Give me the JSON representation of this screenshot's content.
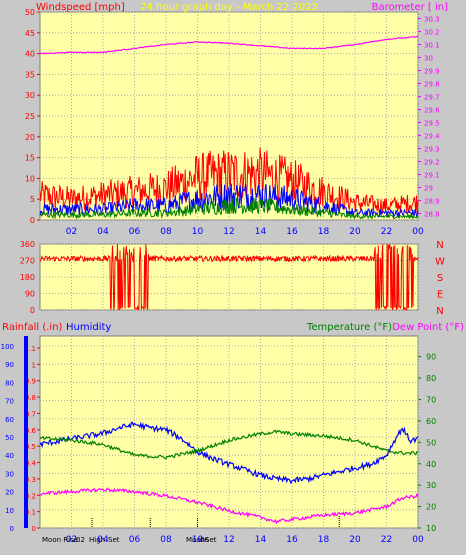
{
  "colors": {
    "background": "#c8c8c8",
    "plot": "#ffffa8",
    "grid": "#a8a8a8",
    "wind": "#ff0000",
    "gust": "#ff0000",
    "speed_blue": "#0000ff",
    "speed_green": "#008000",
    "barometer": "#ff00ff",
    "title": "#ffff00",
    "rain": "#ff0000",
    "humidity": "#0000ff",
    "temperature": "#008000",
    "dewpoint": "#ff00ff",
    "direction": "#ff0000",
    "text_red": "#ff0000",
    "text_blue": "#0000ff",
    "text_black": "#000000"
  },
  "chart_data": [
    {
      "type": "line",
      "title": "24 hour graph day - March 22 2022",
      "ylabel_left": "Windspeed [mph]",
      "ylabel_right": "Barometer [ in]",
      "x_ticks": [
        "02",
        "04",
        "06",
        "08",
        "10",
        "12",
        "14",
        "16",
        "18",
        "20",
        "22",
        "00"
      ],
      "left_ticks": [
        "0",
        "5",
        "10",
        "15",
        "20",
        "25",
        "30",
        "35",
        "40",
        "45",
        "50"
      ],
      "right_ticks": [
        "28.8",
        "28.9",
        "29",
        "29.1",
        "29.2",
        "29.3",
        "29.4",
        "29.5",
        "29.6",
        "29.7",
        "29.8",
        "29.9",
        "30",
        "30.1",
        "30.2",
        "30.3"
      ],
      "xlim": [
        0,
        24
      ],
      "ylim_left": [
        0,
        50
      ],
      "ylim_right": [
        28.75,
        30.35
      ],
      "series": [
        {
          "hours": [
            0,
            2,
            4,
            6,
            8,
            10,
            12,
            14,
            16,
            18,
            20,
            22,
            24
          ],
          "values": [
            7,
            6,
            7,
            8,
            9,
            12,
            13,
            13,
            11,
            8,
            5,
            4,
            5
          ],
          "axis": "left"
        },
        {
          "hours": [
            0,
            2,
            4,
            6,
            8,
            10,
            12,
            14,
            16,
            18,
            20,
            22,
            24
          ],
          "values": [
            3,
            3,
            3,
            4,
            4,
            6,
            7,
            7,
            6,
            4,
            2,
            2,
            2
          ],
          "axis": "left"
        },
        {
          "hours": [
            0,
            2,
            4,
            6,
            8,
            10,
            12,
            14,
            16,
            18,
            20,
            22,
            24
          ],
          "values": [
            1.5,
            1.5,
            1.5,
            2,
            2,
            3,
            4,
            4,
            3,
            2,
            1,
            1,
            1
          ],
          "axis": "left"
        },
        {
          "hours": [
            0,
            2,
            4,
            6,
            8,
            10,
            12,
            14,
            16,
            18,
            20,
            22,
            24
          ],
          "values": [
            30.03,
            30.04,
            30.04,
            30.07,
            30.1,
            30.12,
            30.11,
            30.09,
            30.07,
            30.07,
            30.1,
            30.14,
            30.16
          ],
          "axis": "right"
        }
      ]
    },
    {
      "type": "scatter",
      "left_ticks": [
        "360",
        "270",
        "180",
        "90",
        "0"
      ],
      "compass": [
        "N",
        "W",
        "S",
        "E",
        "N"
      ],
      "ylim": [
        0,
        360
      ],
      "xlim": [
        0,
        24
      ],
      "series": [
        {
          "hours": [
            0,
            4.6,
            5.3,
            6,
            7,
            8,
            9,
            10,
            12,
            14,
            16,
            18,
            20,
            21.2,
            22,
            23,
            24
          ],
          "values": [
            270,
            280,
            0,
            290,
            10,
            290,
            270,
            285,
            280,
            290,
            280,
            280,
            275,
            270,
            10,
            330,
            280
          ]
        }
      ]
    },
    {
      "type": "line",
      "ylabel_left_1": "Rainfall (.in)",
      "ylabel_left_2": "Humidity",
      "ylabel_right_1": "Temperature (°F)",
      "ylabel_right_2": "Dew Point (°F)",
      "x_ticks": [
        "02",
        "04",
        "06",
        "08",
        "10",
        "12",
        "14",
        "16",
        "18",
        "20",
        "22",
        "00"
      ],
      "humidity_ticks": [
        "0",
        "10",
        "20",
        "30",
        "40",
        "50",
        "60",
        "70",
        "80",
        "90",
        "100"
      ],
      "rain_ticks": [
        "0",
        "0.1",
        "0.2",
        "0.3",
        "0.4",
        "0.5",
        "0.6",
        "0.7",
        "0.8",
        "0.9",
        "1",
        "1.1"
      ],
      "temp_ticks": [
        "10",
        "20",
        "30",
        "40",
        "50",
        "60",
        "70",
        "80",
        "90"
      ],
      "xlim": [
        0,
        24
      ],
      "ylim_humidity": [
        0,
        100
      ],
      "ylim_temp": [
        10,
        95
      ],
      "series": [
        {
          "name": "Humidity",
          "hours": [
            0,
            2,
            4,
            5,
            6,
            7,
            8,
            9,
            10,
            11,
            12,
            13,
            14,
            15,
            16,
            17,
            18,
            19,
            20,
            21,
            22,
            22.5,
            23,
            23.5,
            24
          ],
          "values": [
            46,
            49,
            52,
            55,
            57,
            55,
            54,
            49,
            42,
            38,
            35,
            32,
            29,
            27,
            26,
            27,
            29,
            31,
            33,
            35,
            40,
            48,
            55,
            48,
            49
          ],
          "axis": "humidity"
        },
        {
          "name": "Temperature",
          "hours": [
            0,
            2,
            4,
            6,
            8,
            10,
            12,
            14,
            15,
            16,
            18,
            20,
            22,
            23,
            24
          ],
          "values": [
            52,
            51,
            49,
            44,
            43,
            46,
            51,
            54,
            55,
            54,
            53,
            51,
            46,
            45,
            45
          ],
          "axis": "temp"
        },
        {
          "name": "Dew Point",
          "hours": [
            0,
            2,
            4,
            6,
            8,
            10,
            12,
            14,
            15,
            16,
            18,
            20,
            22,
            23,
            24
          ],
          "values": [
            26,
            27,
            28,
            27,
            25,
            22,
            18,
            15,
            13,
            14,
            16,
            17,
            20,
            24,
            25
          ],
          "axis": "temp"
        }
      ],
      "rain_series": {
        "hours": [
          0,
          24
        ],
        "values": [
          0,
          0
        ]
      },
      "events": [
        "Moon Rise",
        "02",
        "High",
        "Set",
        "Moon",
        "06",
        "Set"
      ],
      "event_hours": [
        3.3,
        7,
        10
      ]
    }
  ]
}
